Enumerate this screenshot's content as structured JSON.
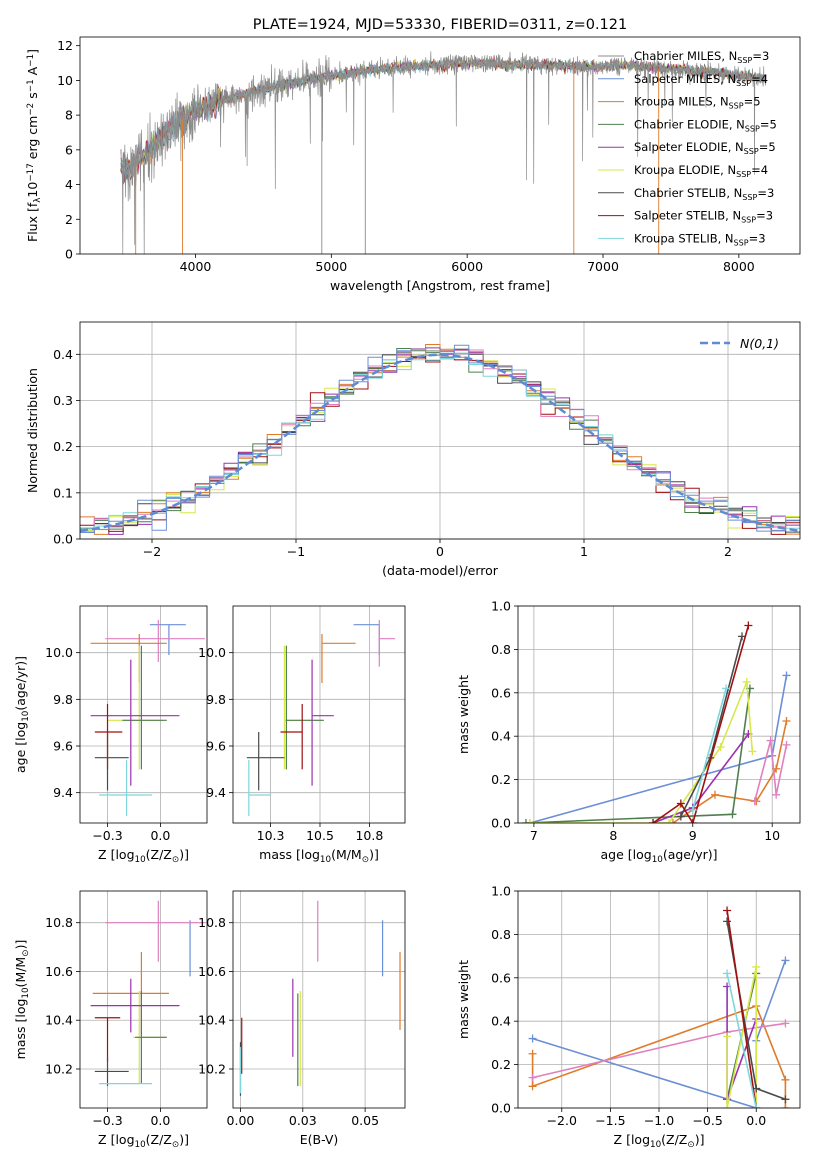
{
  "figure_title": "PLATE=1924, MJD=53330, FIBERID=0311, z=0.121",
  "colors": {
    "Chabrier MILES": "#8c8c8c",
    "Salpeter MILES": "#6b8fd6",
    "Kroupa MILES": "#e07b2a",
    "Chabrier ELODIE": "#4f7f4f",
    "Salpeter ELODIE": "#9b30b0",
    "Kroupa ELODIE": "#d6e84a",
    "Chabrier STELIB": "#4a4a4a",
    "Salpeter STELIB": "#a01010",
    "Kroupa STELIB": "#7fd6dc",
    "pink": "#e080c0",
    "normal": "#5f8bd6"
  },
  "chart_data": [
    {
      "id": "spectrum",
      "type": "line",
      "xlabel": "wavelength [Angstrom, rest frame]",
      "ylabel": "Flux [f$_\\lambda$10$^{-17}$ erg cm$^{-2}$ s$^{-1}$ A$^{-1}$]",
      "xlim": [
        3150,
        8450
      ],
      "ylim": [
        0,
        12.5
      ],
      "xticks": [
        4000,
        5000,
        6000,
        7000,
        8000
      ],
      "yticks": [
        0,
        2,
        4,
        6,
        8,
        10,
        12
      ],
      "grid": false,
      "legend_position": "right",
      "x_range_data": [
        3450,
        8200
      ],
      "envelope_x": [
        3450,
        3500,
        3600,
        3700,
        3800,
        3900,
        4000,
        4200,
        4400,
        4600,
        4800,
        5000,
        5200,
        5400,
        5600,
        5800,
        6000,
        6200,
        6400,
        6600,
        6800,
        7000,
        7200,
        7400,
        7600,
        7800,
        8000,
        8200
      ],
      "envelope_y": [
        5.2,
        4.8,
        5.5,
        6.3,
        7.0,
        7.7,
        8.3,
        8.9,
        9.3,
        9.7,
        10.0,
        10.3,
        10.5,
        10.7,
        10.8,
        10.9,
        11.0,
        11.0,
        10.9,
        10.9,
        10.8,
        10.8,
        10.9,
        10.7,
        10.6,
        10.5,
        10.3,
        10.1
      ],
      "series": [
        {
          "name": "Chabrier MILES, N$_{SSP}$=3"
        },
        {
          "name": "Salpeter MILES, N$_{SSP}$=4"
        },
        {
          "name": "Kroupa MILES, N$_{SSP}$=5"
        },
        {
          "name": "Chabrier ELODIE, N$_{SSP}$=5"
        },
        {
          "name": "Salpeter ELODIE, N$_{SSP}$=5"
        },
        {
          "name": "Kroupa ELODIE, N$_{SSP}$=4"
        },
        {
          "name": "Chabrier STELIB, N$_{SSP}$=3"
        },
        {
          "name": "Salpeter STELIB, N$_{SSP}$=3"
        },
        {
          "name": "Kroupa STELIB, N$_{SSP}$=3"
        }
      ]
    },
    {
      "id": "residuals",
      "type": "histogram",
      "xlabel": "(data-model)/error",
      "ylabel": "Normed distribution",
      "xlim": [
        -2.5,
        2.5
      ],
      "ylim": [
        0,
        0.47
      ],
      "xticks": [
        -2,
        -1,
        0,
        1,
        2
      ],
      "yticks": [
        0.0,
        0.1,
        0.2,
        0.3,
        0.4
      ],
      "grid": true,
      "legend": [
        "$\\mathcal{N}(0,1)$"
      ],
      "legend_position": "top-right"
    },
    {
      "id": "age_vs_Z",
      "type": "errorbar",
      "xlabel": "Z [log$_{10}$(Z/Z$_\\odot$)]",
      "ylabel": "age  [log$_{10}$(age/yr)]",
      "xlim": [
        -0.38,
        0.22
      ],
      "ylim": [
        9.27,
        10.2
      ],
      "xticks": [
        -0.25,
        0.0
      ],
      "yticks": [
        9.4,
        9.6,
        9.8,
        10.0
      ],
      "grid": true,
      "points": [
        {
          "c": "Salpeter MILES",
          "x": 0.04,
          "y": 10.12,
          "xe": [
            0.09,
            0.08
          ],
          "ye": [
            0.13,
            0.0
          ]
        },
        {
          "c": "pink",
          "x": -0.01,
          "y": 10.06,
          "xe": [
            0.25,
            0.22
          ],
          "ye": [
            0.1,
            0.08
          ]
        },
        {
          "c": "Kroupa MILES",
          "x": -0.1,
          "y": 10.04,
          "xe": [
            0.23,
            0.13
          ],
          "ye": [
            0.17,
            0.04
          ]
        },
        {
          "c": "Kroupa ELODIE",
          "x": -0.1,
          "y": 9.71,
          "xe": [
            0.15,
            0.11
          ],
          "ye": [
            0.21,
            0.32
          ]
        },
        {
          "c": "Chabrier ELODIE",
          "x": -0.09,
          "y": 9.71,
          "xe": [
            0.09,
            0.12
          ],
          "ye": [
            0.21,
            0.32
          ]
        },
        {
          "c": "Salpeter ELODIE",
          "x": -0.14,
          "y": 9.73,
          "xe": [
            0.19,
            0.23
          ],
          "ye": [
            0.3,
            0.24
          ]
        },
        {
          "c": "Salpeter STELIB",
          "x": -0.25,
          "y": 9.66,
          "xe": [
            0.06,
            0.07
          ],
          "ye": [
            0.16,
            0.12
          ]
        },
        {
          "c": "Chabrier STELIB",
          "x": -0.25,
          "y": 9.55,
          "xe": [
            0.06,
            0.1
          ],
          "ye": [
            0.14,
            0.11
          ]
        },
        {
          "c": "Kroupa STELIB",
          "x": -0.16,
          "y": 9.39,
          "xe": [
            0.13,
            0.12
          ],
          "ye": [
            0.09,
            0.15
          ]
        }
      ]
    },
    {
      "id": "age_vs_mass",
      "type": "errorbar",
      "xlabel": "mass [log$_{10}$(M/M$_\\odot$)]",
      "ylabel": "",
      "xlim": [
        10.06,
        10.93
      ],
      "ylim": [
        9.27,
        10.2
      ],
      "xticks": [
        10.25,
        10.5,
        10.75
      ],
      "yticks": [
        9.4,
        9.6,
        9.8,
        10.0
      ],
      "grid": true,
      "points": [
        {
          "c": "Salpeter MILES",
          "x": 10.8,
          "y": 10.12,
          "xe": [
            0.13,
            0.0
          ],
          "ye": [
            0.13,
            0.0
          ]
        },
        {
          "c": "pink",
          "x": 10.8,
          "y": 10.06,
          "xe": [
            0.0,
            0.08
          ],
          "ye": [
            0.12,
            0.08
          ]
        },
        {
          "c": "Kroupa MILES",
          "x": 10.51,
          "y": 10.04,
          "xe": [
            0.0,
            0.17
          ],
          "ye": [
            0.17,
            0.04
          ]
        },
        {
          "c": "Kroupa ELODIE",
          "x": 10.32,
          "y": 9.71,
          "xe": [
            0.0,
            0.19
          ],
          "ye": [
            0.21,
            0.32
          ]
        },
        {
          "c": "Chabrier ELODIE",
          "x": 10.33,
          "y": 9.71,
          "xe": [
            0.0,
            0.19
          ],
          "ye": [
            0.21,
            0.32
          ]
        },
        {
          "c": "Salpeter ELODIE",
          "x": 10.46,
          "y": 9.73,
          "xe": [
            0.0,
            0.11
          ],
          "ye": [
            0.3,
            0.24
          ]
        },
        {
          "c": "Salpeter STELIB",
          "x": 10.41,
          "y": 9.66,
          "xe": [
            0.11,
            0.0
          ],
          "ye": [
            0.16,
            0.12
          ]
        },
        {
          "c": "Chabrier STELIB",
          "x": 10.19,
          "y": 9.55,
          "xe": [
            0.06,
            0.13
          ],
          "ye": [
            0.14,
            0.11
          ]
        },
        {
          "c": "Kroupa STELIB",
          "x": 10.14,
          "y": 9.39,
          "xe": [
            0.0,
            0.11
          ],
          "ye": [
            0.09,
            0.15
          ]
        }
      ]
    },
    {
      "id": "weight_vs_age",
      "type": "line",
      "xlabel": "age  [log$_{10}$(age/yr)]",
      "ylabel": "mass weight",
      "xlim": [
        6.8,
        10.35
      ],
      "ylim": [
        0,
        1
      ],
      "xticks": [
        7,
        8,
        9,
        10
      ],
      "yticks": [
        0.0,
        0.2,
        0.4,
        0.6,
        0.8,
        1.0
      ],
      "grid": true,
      "series": [
        {
          "c": "Salpeter MILES",
          "points": [
            [
              6.95,
              0.0
            ],
            [
              10.0,
              0.31
            ],
            [
              10.18,
              0.68
            ]
          ]
        },
        {
          "c": "Kroupa MILES",
          "points": [
            [
              8.75,
              0.0
            ],
            [
              9.28,
              0.13
            ],
            [
              9.8,
              0.1
            ],
            [
              10.05,
              0.25
            ],
            [
              10.18,
              0.47
            ]
          ]
        },
        {
          "c": "pink",
          "points": [
            [
              9.78,
              0.1
            ],
            [
              9.98,
              0.38
            ],
            [
              10.05,
              0.13
            ],
            [
              10.18,
              0.36
            ]
          ]
        },
        {
          "c": "Chabrier ELODIE",
          "points": [
            [
              6.9,
              0.0
            ],
            [
              9.5,
              0.04
            ],
            [
              9.72,
              0.62
            ]
          ]
        },
        {
          "c": "Salpeter ELODIE",
          "points": [
            [
              8.5,
              0.0
            ],
            [
              9.0,
              0.07
            ],
            [
              9.7,
              0.41
            ]
          ]
        },
        {
          "c": "Kroupa ELODIE",
          "points": [
            [
              6.95,
              0.0
            ],
            [
              8.7,
              0.0
            ],
            [
              9.35,
              0.35
            ],
            [
              9.68,
              0.65
            ],
            [
              9.75,
              0.33
            ]
          ]
        },
        {
          "c": "Chabrier STELIB",
          "points": [
            [
              8.85,
              0.03
            ],
            [
              9.22,
              0.3
            ],
            [
              9.62,
              0.86
            ]
          ]
        },
        {
          "c": "Salpeter STELIB",
          "points": [
            [
              8.5,
              0.0
            ],
            [
              8.85,
              0.09
            ],
            [
              9.0,
              0.0
            ],
            [
              9.7,
              0.91
            ]
          ]
        },
        {
          "c": "Kroupa STELIB",
          "points": [
            [
              9.0,
              0.06
            ],
            [
              9.42,
              0.62
            ]
          ]
        }
      ]
    },
    {
      "id": "mass_vs_Z",
      "type": "errorbar",
      "xlabel": "Z [log$_{10}$(Z/Z$_\\odot$)]",
      "ylabel": "mass [log$_{10}$(M/M$_\\odot$)]",
      "xlim": [
        -0.38,
        0.22
      ],
      "ylim": [
        10.04,
        10.93
      ],
      "xticks": [
        -0.25,
        0.0
      ],
      "yticks": [
        10.2,
        10.4,
        10.6,
        10.8
      ],
      "grid": true,
      "points": [
        {
          "c": "Salpeter MILES",
          "x": 0.14,
          "y": 10.8,
          "xe": [
            0.0,
            0.0
          ],
          "ye": [
            0.22,
            0.01
          ]
        },
        {
          "c": "pink",
          "x": -0.01,
          "y": 10.8,
          "xe": [
            0.25,
            0.22
          ],
          "ye": [
            0.16,
            0.09
          ]
        },
        {
          "c": "Kroupa MILES",
          "x": -0.09,
          "y": 10.51,
          "xe": [
            0.23,
            0.13
          ],
          "ye": [
            0.17,
            0.17
          ]
        },
        {
          "c": "Kroupa ELODIE",
          "x": -0.1,
          "y": 10.33,
          "xe": [
            0.03,
            0.13
          ],
          "ye": [
            0.19,
            0.19
          ]
        },
        {
          "c": "Chabrier ELODIE",
          "x": -0.09,
          "y": 10.33,
          "xe": [
            0.03,
            0.12
          ],
          "ye": [
            0.19,
            0.19
          ]
        },
        {
          "c": "Salpeter ELODIE",
          "x": -0.14,
          "y": 10.46,
          "xe": [
            0.19,
            0.23
          ],
          "ye": [
            0.11,
            0.11
          ]
        },
        {
          "c": "Salpeter STELIB",
          "x": -0.25,
          "y": 10.41,
          "xe": [
            0.06,
            0.06
          ],
          "ye": [
            0.18,
            0.0
          ]
        },
        {
          "c": "Chabrier STELIB",
          "x": -0.25,
          "y": 10.19,
          "xe": [
            0.06,
            0.1
          ],
          "ye": [
            0.06,
            0.06
          ]
        },
        {
          "c": "Kroupa STELIB",
          "x": -0.16,
          "y": 10.14,
          "xe": [
            0.13,
            0.12
          ],
          "ye": [
            0.0,
            0.0
          ]
        }
      ]
    },
    {
      "id": "mass_vs_EBV",
      "type": "errorbar",
      "xlabel": "E(B-V)",
      "ylabel": "",
      "xlim": [
        -0.003,
        0.066
      ],
      "ylim": [
        10.04,
        10.93
      ],
      "xticks": [
        0.0,
        0.025,
        0.05
      ],
      "yticks": [
        10.2,
        10.4,
        10.6,
        10.8
      ],
      "grid": true,
      "points": [
        {
          "c": "Salpeter MILES",
          "x": 0.057,
          "y": 10.7,
          "xe": [
            0,
            0
          ],
          "ye": [
            0.12,
            0.11
          ]
        },
        {
          "c": "pink",
          "x": 0.031,
          "y": 10.77,
          "xe": [
            0,
            0
          ],
          "ye": [
            0.13,
            0.12
          ]
        },
        {
          "c": "Kroupa MILES",
          "x": 0.064,
          "y": 10.52,
          "xe": [
            0,
            0
          ],
          "ye": [
            0.16,
            0.16
          ]
        },
        {
          "c": "Kroupa ELODIE",
          "x": 0.024,
          "y": 10.33,
          "xe": [
            0,
            0
          ],
          "ye": [
            0.2,
            0.19
          ]
        },
        {
          "c": "Chabrier ELODIE",
          "x": 0.023,
          "y": 10.32,
          "xe": [
            0,
            0
          ],
          "ye": [
            0.19,
            0.19
          ]
        },
        {
          "c": "Salpeter ELODIE",
          "x": 0.021,
          "y": 10.41,
          "xe": [
            0,
            0
          ],
          "ye": [
            0.16,
            0.16
          ]
        },
        {
          "c": "Salpeter STELIB",
          "x": 0.0005,
          "y": 10.3,
          "xe": [
            0,
            0
          ],
          "ye": [
            0.12,
            0.11
          ]
        },
        {
          "c": "Chabrier STELIB",
          "x": 0.0,
          "y": 10.2,
          "xe": [
            0,
            0
          ],
          "ye": [
            0.11,
            0.11
          ]
        },
        {
          "c": "Kroupa STELIB",
          "x": 0.0,
          "y": 10.2,
          "xe": [
            0,
            0
          ],
          "ye": [
            0.1,
            0.09
          ]
        }
      ]
    },
    {
      "id": "weight_vs_Z",
      "type": "line",
      "xlabel": "Z [log$_{10}$(Z/Z$_\\odot$)]",
      "ylabel": "mass weight",
      "xlim": [
        -2.45,
        0.45
      ],
      "ylim": [
        0,
        1
      ],
      "xticks": [
        -2.0,
        -1.5,
        -1.0,
        -0.5,
        0.0
      ],
      "yticks": [
        0.0,
        0.2,
        0.4,
        0.6,
        0.8,
        1.0
      ],
      "grid": true,
      "series": [
        {
          "c": "Salpeter MILES",
          "points": [
            [
              -2.3,
              0.32
            ],
            [
              0.0,
              0.0
            ],
            [
              0.0,
              0.31
            ],
            [
              0.3,
              0.68
            ]
          ]
        },
        {
          "c": "Kroupa MILES",
          "points": [
            [
              -2.3,
              0.25
            ],
            [
              -2.3,
              0.1
            ],
            [
              0.0,
              0.47
            ],
            [
              0.3,
              0.13
            ],
            [
              0.3,
              0.0
            ]
          ]
        },
        {
          "c": "pink",
          "points": [
            [
              -2.3,
              0.14
            ],
            [
              -0.3,
              0.35
            ],
            [
              0.3,
              0.39
            ]
          ]
        },
        {
          "c": "Chabrier ELODIE",
          "points": [
            [
              -0.3,
              0.04
            ],
            [
              0.0,
              0.62
            ]
          ]
        },
        {
          "c": "Salpeter ELODIE",
          "points": [
            [
              -0.3,
              0.56
            ],
            [
              -0.3,
              0.04
            ],
            [
              0.0,
              0.41
            ]
          ]
        },
        {
          "c": "Kroupa ELODIE",
          "points": [
            [
              -0.3,
              0.33
            ],
            [
              -0.3,
              0.0
            ],
            [
              0.0,
              0.65
            ],
            [
              0.0,
              0.0
            ]
          ]
        },
        {
          "c": "Chabrier STELIB",
          "points": [
            [
              -0.3,
              0.86
            ],
            [
              0.0,
              0.09
            ],
            [
              0.3,
              0.04
            ]
          ]
        },
        {
          "c": "Salpeter STELIB",
          "points": [
            [
              -0.3,
              0.91
            ],
            [
              0.0,
              0.0
            ]
          ]
        },
        {
          "c": "Kroupa STELIB",
          "points": [
            [
              -0.3,
              0.62
            ],
            [
              0.0,
              0.0
            ]
          ]
        }
      ]
    }
  ]
}
